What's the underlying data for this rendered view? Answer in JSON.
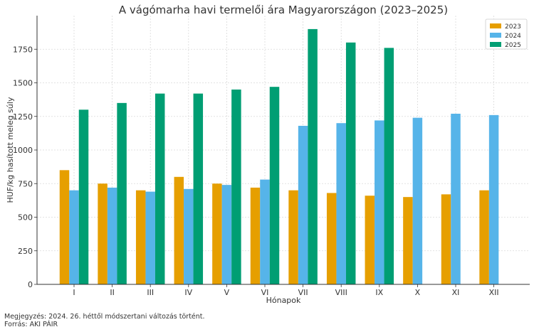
{
  "chart_data": {
    "type": "bar",
    "title": "A vágómarha havi termelői ára Magyarországon (2023–2025)",
    "xlabel": "Hónapok",
    "ylabel": "HUF/kg hasított meleg súly",
    "categories": [
      "I",
      "II",
      "III",
      "IV",
      "V",
      "VI",
      "VII",
      "VIII",
      "IX",
      "X",
      "XI",
      "XII"
    ],
    "ylim": [
      0,
      2000
    ],
    "yticks": [
      0,
      250,
      500,
      750,
      1000,
      1250,
      1500,
      1750
    ],
    "grid": true,
    "legend_position": "top-right",
    "series": [
      {
        "name": "2023",
        "color": "#E69F00",
        "values": [
          850,
          750,
          700,
          800,
          750,
          720,
          700,
          680,
          660,
          650,
          670,
          700
        ]
      },
      {
        "name": "2024",
        "color": "#56B4E9",
        "values": [
          700,
          720,
          690,
          710,
          740,
          780,
          1180,
          1200,
          1220,
          1240,
          1270,
          1260
        ]
      },
      {
        "name": "2025",
        "color": "#009E73",
        "values": [
          1300,
          1350,
          1420,
          1420,
          1450,
          1470,
          1900,
          1800,
          1760,
          null,
          null,
          null
        ]
      }
    ]
  },
  "notes": {
    "line1": "Megjegyzés: 2024. 26. héttől módszertani változás történt.",
    "line2": "Forrás: AKI PÁIR"
  }
}
